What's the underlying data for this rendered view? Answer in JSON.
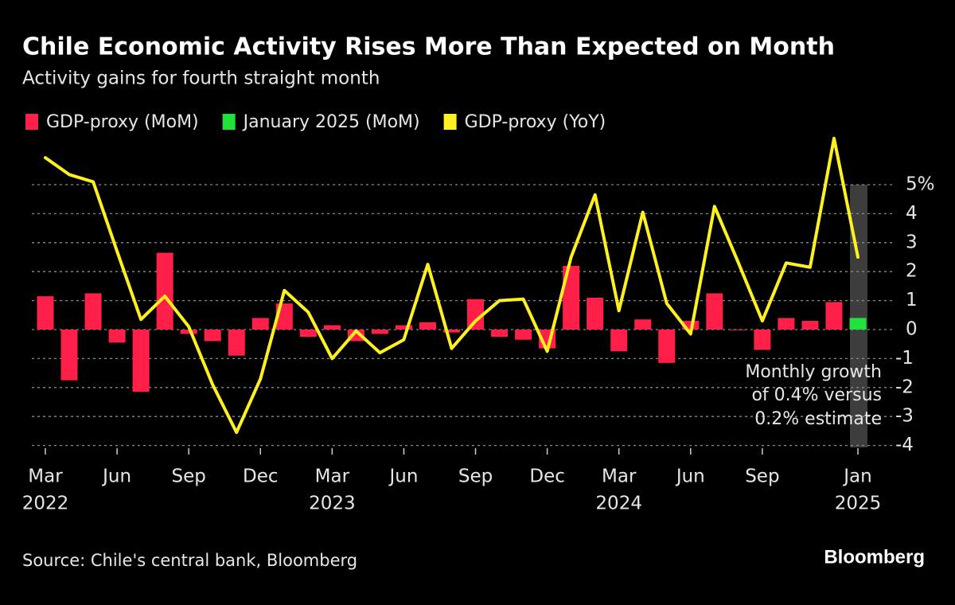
{
  "chart_data": {
    "type": "bar-line",
    "title": "Chile Economic Activity Rises More Than Expected on Month",
    "subtitle": "Activity gains for fourth straight month",
    "categories": [
      "Mar",
      null,
      null,
      "Jun",
      null,
      null,
      "Sep",
      null,
      null,
      "Dec",
      null,
      null,
      "Mar",
      null,
      null,
      "Jun",
      null,
      null,
      "Sep",
      null,
      null,
      "Dec",
      null,
      null,
      "Mar",
      null,
      null,
      "Jun",
      null,
      null,
      "Sep",
      null,
      null,
      null,
      "Jan"
    ],
    "year_labels": [
      "2022",
      null,
      null,
      null,
      null,
      null,
      null,
      null,
      null,
      null,
      null,
      null,
      "2023",
      null,
      null,
      null,
      null,
      null,
      null,
      null,
      null,
      null,
      null,
      null,
      "2024",
      null,
      null,
      null,
      null,
      null,
      null,
      null,
      null,
      null,
      "2025"
    ],
    "series": [
      {
        "name": "GDP-proxy (MoM)",
        "type": "bar",
        "color": "#ff1f48",
        "values": [
          1.15,
          -1.75,
          1.25,
          -0.45,
          -2.15,
          2.65,
          -0.15,
          -0.4,
          -0.9,
          0.4,
          0.9,
          -0.25,
          0.15,
          -0.4,
          -0.15,
          0.15,
          0.25,
          -0.1,
          1.05,
          -0.25,
          -0.35,
          -0.65,
          2.2,
          1.1,
          -0.75,
          0.35,
          -1.15,
          0.3,
          1.25,
          -0.02,
          -0.7,
          0.4,
          0.3,
          0.95,
          null
        ]
      },
      {
        "name": "January 2025 (MoM)",
        "type": "bar",
        "color": "#1fe33b",
        "values": [
          null,
          null,
          null,
          null,
          null,
          null,
          null,
          null,
          null,
          null,
          null,
          null,
          null,
          null,
          null,
          null,
          null,
          null,
          null,
          null,
          null,
          null,
          null,
          null,
          null,
          null,
          null,
          null,
          null,
          null,
          null,
          null,
          null,
          null,
          0.4
        ]
      },
      {
        "name": "GDP-proxy (YoY)",
        "type": "line",
        "color": "#fff01f",
        "values": [
          5.93,
          5.35,
          5.1,
          2.7,
          0.35,
          1.15,
          0.1,
          -1.9,
          -3.55,
          -1.7,
          1.35,
          0.6,
          -1.0,
          -0.05,
          -0.8,
          -0.35,
          2.25,
          -0.65,
          0.3,
          1.0,
          1.05,
          -0.75,
          2.5,
          4.65,
          0.65,
          4.05,
          0.9,
          -0.15,
          4.25,
          2.3,
          0.3,
          2.3,
          2.15,
          6.6,
          2.5
        ]
      }
    ],
    "ylim": [
      -4.2,
      6.8
    ],
    "yticks": [
      {
        "value": 5,
        "label": "5%"
      },
      4,
      3,
      2,
      1,
      0,
      -1,
      -2,
      -3,
      -4
    ],
    "grid": true,
    "annotation": [
      "Monthly growth",
      "of 0.4% versus",
      "0.2% estimate"
    ],
    "source": "Source: Chile's central bank, Bloomberg",
    "brand": "Bloomberg"
  }
}
